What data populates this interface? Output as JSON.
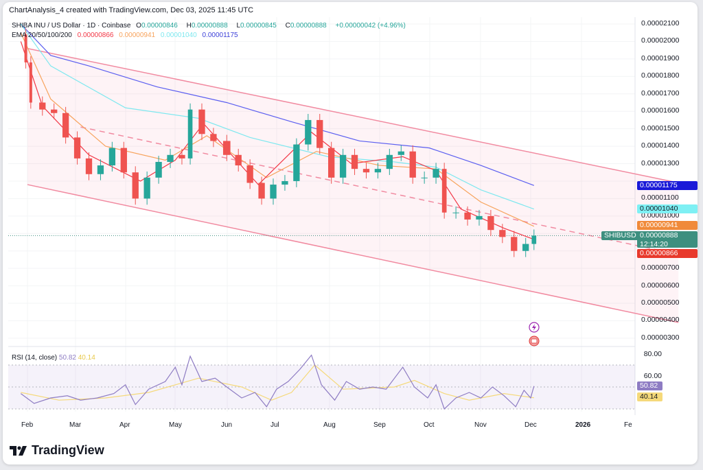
{
  "caption": "ChartAnalysis_4 created with TradingView.com, Dec 03, 2025 11:45 UTC",
  "symbol_line": {
    "name": "SHIBA INU / US Dollar · 1D · Coinbase",
    "o_label": "O",
    "o": "0.00000846",
    "h_label": "H",
    "h": "0.00000888",
    "l_label": "L",
    "l": "0.00000845",
    "c_label": "C",
    "c": "0.00000888",
    "change": "+0.00000042 (+4.96%)"
  },
  "ema_line": {
    "label": "EMA 20/50/100/200",
    "v20": "0.00000866",
    "v50": "0.00000941",
    "v100": "0.00001040",
    "v200": "0.00001175"
  },
  "price_axis": [
    "0.00002100",
    "0.00002000",
    "0.00001900",
    "0.00001800",
    "0.00001700",
    "0.00001600",
    "0.00001500",
    "0.00001400",
    "0.00001300",
    "0.00001100",
    "0.00001000",
    "0.00000700",
    "0.00000600",
    "0.00000500",
    "0.00000400",
    "0.00000300"
  ],
  "tags": {
    "ema200": "0.00001175",
    "ema100": "0.00001040",
    "ema50": "0.00000941",
    "symbol": "SHIBUSD",
    "price": "0.00000888",
    "countdown": "12:14:20",
    "ema20": "0.00000866"
  },
  "rsi": {
    "label": "RSI (14, close)",
    "value": "50.82",
    "ma": "40.14",
    "axis": [
      "80.00",
      "60.00"
    ]
  },
  "x_axis": [
    "Feb",
    "Mar",
    "Apr",
    "May",
    "Jun",
    "Jul",
    "Aug",
    "Sep",
    "Oct",
    "Nov",
    "Dec",
    "2026",
    "Fe"
  ],
  "logo": "TradingView",
  "colors": {
    "up": "#26a69a",
    "down": "#ef5350",
    "ema20": "#f23645",
    "ema50": "#f7a35c",
    "ema100": "#7ee8ef",
    "ema200": "#5a5ef0",
    "channel": "#f18aa0",
    "rsi": "#8e7cc3",
    "rsi_ma": "#f5d97a",
    "price_tag": "#3d8f7f"
  },
  "icons": [
    "lightning-event-icon",
    "us-flag-event-icon"
  ],
  "chart_data": {
    "type": "candlestick",
    "unit": "USD",
    "ylim": [
      2.5e-06,
      2.15e-05
    ],
    "closes": [
      [
        "2025-01-28",
        20.4
      ],
      [
        "2025-01-31",
        18.8
      ],
      [
        "2025-02-03",
        16.5
      ],
      [
        "2025-02-10",
        16.1
      ],
      [
        "2025-02-17",
        15.9
      ],
      [
        "2025-02-24",
        14.5
      ],
      [
        "2025-03-03",
        13.3
      ],
      [
        "2025-03-10",
        12.4
      ],
      [
        "2025-03-17",
        12.9
      ],
      [
        "2025-03-24",
        13.9
      ],
      [
        "2025-03-31",
        12.5
      ],
      [
        "2025-04-07",
        11.0
      ],
      [
        "2025-04-14",
        12.2
      ],
      [
        "2025-04-21",
        13.1
      ],
      [
        "2025-04-28",
        13.5
      ],
      [
        "2025-05-05",
        13.3
      ],
      [
        "2025-05-10",
        16.1
      ],
      [
        "2025-05-17",
        14.7
      ],
      [
        "2025-05-24",
        14.3
      ],
      [
        "2025-06-01",
        13.5
      ],
      [
        "2025-06-08",
        12.9
      ],
      [
        "2025-06-15",
        11.9
      ],
      [
        "2025-06-22",
        11.0
      ],
      [
        "2025-06-29",
        11.8
      ],
      [
        "2025-07-06",
        12.0
      ],
      [
        "2025-07-13",
        14.1
      ],
      [
        "2025-07-20",
        15.5
      ],
      [
        "2025-07-27",
        13.9
      ],
      [
        "2025-08-03",
        12.2
      ],
      [
        "2025-08-10",
        13.5
      ],
      [
        "2025-08-17",
        12.7
      ],
      [
        "2025-08-24",
        12.5
      ],
      [
        "2025-08-31",
        12.7
      ],
      [
        "2025-09-07",
        13.5
      ],
      [
        "2025-09-14",
        13.7
      ],
      [
        "2025-09-21",
        12.2
      ],
      [
        "2025-09-28",
        12.2
      ],
      [
        "2025-10-05",
        12.7
      ],
      [
        "2025-10-10",
        10.2
      ],
      [
        "2025-10-17",
        10.2
      ],
      [
        "2025-10-24",
        9.8
      ],
      [
        "2025-10-31",
        10.0
      ],
      [
        "2025-11-07",
        9.2
      ],
      [
        "2025-11-14",
        8.8
      ],
      [
        "2025-11-21",
        8.0
      ],
      [
        "2025-11-28",
        8.4
      ],
      [
        "2025-12-03",
        8.88
      ]
    ],
    "price_scale": "1e-6",
    "ema": {
      "ema200": [
        [
          "2025-01-28",
          21.0
        ],
        [
          "2025-02-15",
          19.2
        ],
        [
          "2025-03-10",
          18.6
        ],
        [
          "2025-04-20",
          17.4
        ],
        [
          "2025-06-01",
          16.5
        ],
        [
          "2025-07-10",
          15.4
        ],
        [
          "2025-08-20",
          14.3
        ],
        [
          "2025-10-01",
          13.9
        ],
        [
          "2025-11-01",
          12.9
        ],
        [
          "2025-12-03",
          11.75
        ]
      ],
      "ema100": [
        [
          "2025-01-28",
          21.0
        ],
        [
          "2025-02-15",
          18.6
        ],
        [
          "2025-04-01",
          16.2
        ],
        [
          "2025-05-15",
          15.6
        ],
        [
          "2025-06-15",
          14.5
        ],
        [
          "2025-08-01",
          13.4
        ],
        [
          "2025-09-10",
          13.1
        ],
        [
          "2025-10-05",
          12.8
        ],
        [
          "2025-11-01",
          11.5
        ],
        [
          "2025-12-03",
          10.4
        ]
      ],
      "ema50": [
        [
          "2025-01-28",
          20.5
        ],
        [
          "2025-02-15",
          16.7
        ],
        [
          "2025-03-20",
          14.0
        ],
        [
          "2025-04-25",
          13.2
        ],
        [
          "2025-05-20",
          14.6
        ],
        [
          "2025-06-25",
          12.2
        ],
        [
          "2025-07-25",
          13.7
        ],
        [
          "2025-09-01",
          12.9
        ],
        [
          "2025-10-05",
          12.7
        ],
        [
          "2025-11-01",
          10.8
        ],
        [
          "2025-12-03",
          9.41
        ]
      ],
      "ema20": [
        [
          "2025-01-28",
          20.0
        ],
        [
          "2025-02-10",
          16.3
        ],
        [
          "2025-03-10",
          13.5
        ],
        [
          "2025-04-10",
          12.0
        ],
        [
          "2025-05-01",
          13.2
        ],
        [
          "2025-05-18",
          15.3
        ],
        [
          "2025-06-20",
          11.8
        ],
        [
          "2025-07-22",
          14.8
        ],
        [
          "2025-08-15",
          13.0
        ],
        [
          "2025-09-15",
          13.4
        ],
        [
          "2025-10-05",
          12.6
        ],
        [
          "2025-10-20",
          10.4
        ],
        [
          "2025-11-15",
          9.3
        ],
        [
          "2025-12-03",
          8.66
        ]
      ]
    },
    "channel": {
      "upper": [
        [
          "2025-02-01",
          19.6
        ],
        [
          "2026-02-28",
          11.9
        ]
      ],
      "lower": [
        [
          "2025-02-01",
          11.8
        ],
        [
          "2026-02-28",
          3.9
        ]
      ],
      "mid": [
        [
          "2025-03-05",
          15.1
        ],
        [
          "2026-02-28",
          7.8
        ]
      ]
    },
    "rsi_series": [
      [
        "2025-01-28",
        44
      ],
      [
        "2025-02-05",
        35
      ],
      [
        "2025-02-15",
        40
      ],
      [
        "2025-02-25",
        42
      ],
      [
        "2025-03-05",
        38
      ],
      [
        "2025-03-15",
        40
      ],
      [
        "2025-03-25",
        44
      ],
      [
        "2025-04-01",
        52
      ],
      [
        "2025-04-07",
        34
      ],
      [
        "2025-04-15",
        48
      ],
      [
        "2025-04-25",
        55
      ],
      [
        "2025-05-01",
        68
      ],
      [
        "2025-05-05",
        52
      ],
      [
        "2025-05-10",
        78
      ],
      [
        "2025-05-17",
        55
      ],
      [
        "2025-05-25",
        58
      ],
      [
        "2025-06-01",
        50
      ],
      [
        "2025-06-10",
        40
      ],
      [
        "2025-06-18",
        45
      ],
      [
        "2025-06-25",
        32
      ],
      [
        "2025-07-01",
        48
      ],
      [
        "2025-07-08",
        55
      ],
      [
        "2025-07-15",
        66
      ],
      [
        "2025-07-22",
        79
      ],
      [
        "2025-07-28",
        52
      ],
      [
        "2025-08-05",
        38
      ],
      [
        "2025-08-12",
        55
      ],
      [
        "2025-08-20",
        48
      ],
      [
        "2025-08-28",
        50
      ],
      [
        "2025-09-05",
        48
      ],
      [
        "2025-09-15",
        68
      ],
      [
        "2025-09-22",
        50
      ],
      [
        "2025-09-30",
        40
      ],
      [
        "2025-10-05",
        52
      ],
      [
        "2025-10-10",
        30
      ],
      [
        "2025-10-17",
        40
      ],
      [
        "2025-10-25",
        45
      ],
      [
        "2025-11-01",
        40
      ],
      [
        "2025-11-08",
        50
      ],
      [
        "2025-11-15",
        42
      ],
      [
        "2025-11-22",
        32
      ],
      [
        "2025-11-27",
        47
      ],
      [
        "2025-12-01",
        40
      ],
      [
        "2025-12-03",
        50.82
      ]
    ],
    "rsi_ma_series": [
      [
        "2025-01-28",
        45
      ],
      [
        "2025-02-20",
        38
      ],
      [
        "2025-03-20",
        40
      ],
      [
        "2025-04-15",
        45
      ],
      [
        "2025-05-15",
        58
      ],
      [
        "2025-06-10",
        50
      ],
      [
        "2025-06-28",
        38
      ],
      [
        "2025-07-10",
        45
      ],
      [
        "2025-07-24",
        70
      ],
      [
        "2025-08-10",
        48
      ],
      [
        "2025-09-10",
        50
      ],
      [
        "2025-09-22",
        56
      ],
      [
        "2025-10-10",
        44
      ],
      [
        "2025-10-25",
        38
      ],
      [
        "2025-11-15",
        44
      ],
      [
        "2025-12-03",
        40.14
      ]
    ],
    "rsi_levels": [
      70,
      50,
      30
    ],
    "rsi_ylim": [
      20,
      85
    ]
  }
}
